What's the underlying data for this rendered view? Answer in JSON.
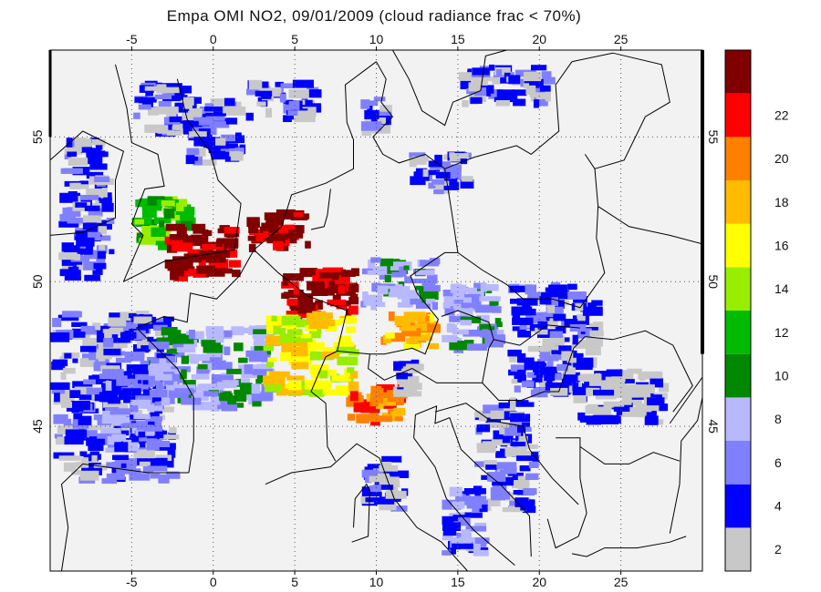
{
  "title": "Empa OMI NO2, 09/01/2009 (cloud radiance frac < 70%)",
  "map": {
    "lon_range": [
      -10,
      30
    ],
    "lat_range": [
      40,
      58
    ],
    "lon_ticks": [
      "-5",
      "0",
      "5",
      "10",
      "15",
      "20",
      "25"
    ],
    "lat_ticks": [
      "45",
      "50",
      "55"
    ],
    "background_color": "#f2f2f2",
    "frame_color": "#000000"
  },
  "colorbar": {
    "labels": [
      "2",
      "4",
      "6",
      "8",
      "10",
      "12",
      "14",
      "16",
      "18",
      "20",
      "22"
    ],
    "colors": [
      "#c8c8c8",
      "#0000ff",
      "#8080ff",
      "#b8b8ff",
      "#008800",
      "#00bb00",
      "#99ee00",
      "#ffff00",
      "#ffbb00",
      "#ff8000",
      "#ff0000",
      "#800000"
    ]
  },
  "chart_data": {
    "type": "heatmap",
    "title": "Empa OMI NO2, 09/01/2009 (cloud radiance frac < 70%)",
    "x": {
      "range": [
        -10,
        30
      ],
      "ticks": [
        -5,
        0,
        5,
        10,
        15,
        20,
        25
      ]
    },
    "y": {
      "range": [
        40,
        58
      ],
      "ticks": [
        45,
        50,
        55
      ]
    },
    "legend": "right",
    "colorbar_ticks": [
      2,
      4,
      6,
      8,
      10,
      12,
      14,
      16,
      18,
      20,
      22
    ],
    "grid": true
  },
  "regions": [
    {
      "lon": [
        -9.5,
        -6
      ],
      "lat": [
        50,
        55
      ],
      "level": 1
    },
    {
      "lon": [
        -10,
        -2
      ],
      "lat": [
        43,
        49
      ],
      "level": 1
    },
    {
      "lon": [
        -7,
        -3
      ],
      "lat": [
        44,
        47
      ],
      "level": 2
    },
    {
      "lon": [
        -4,
        4
      ],
      "lat": [
        45.5,
        48.5
      ],
      "level": 3
    },
    {
      "lon": [
        -5,
        -1
      ],
      "lat": [
        55,
        57
      ],
      "level": 1
    },
    {
      "lon": [
        -2,
        2
      ],
      "lat": [
        54,
        56.5
      ],
      "level": 1
    },
    {
      "lon": [
        2,
        7
      ],
      "lat": [
        55.5,
        57
      ],
      "level": 1
    },
    {
      "lon": [
        9,
        11
      ],
      "lat": [
        55,
        56.5
      ],
      "level": 1
    },
    {
      "lon": [
        15,
        21
      ],
      "lat": [
        56,
        57.5
      ],
      "level": 1
    },
    {
      "lon": [
        -5,
        -1
      ],
      "lat": [
        51,
        53
      ],
      "level": 5
    },
    {
      "lon": [
        -3,
        2
      ],
      "lat": [
        50,
        52
      ],
      "level": 11
    },
    {
      "lon": [
        2,
        6
      ],
      "lat": [
        51,
        52.5
      ],
      "level": 11
    },
    {
      "lon": [
        4,
        9
      ],
      "lat": [
        48.5,
        50.5
      ],
      "level": 11
    },
    {
      "lon": [
        3,
        9
      ],
      "lat": [
        46,
        49
      ],
      "level": 7
    },
    {
      "lon": [
        9,
        14
      ],
      "lat": [
        49,
        51
      ],
      "level": 3
    },
    {
      "lon": [
        10,
        14
      ],
      "lat": [
        47.5,
        49
      ],
      "level": 8
    },
    {
      "lon": [
        14,
        18
      ],
      "lat": [
        47.5,
        50
      ],
      "level": 3
    },
    {
      "lon": [
        18,
        24
      ],
      "lat": [
        46,
        50
      ],
      "level": 1
    },
    {
      "lon": [
        22,
        28
      ],
      "lat": [
        45,
        47
      ],
      "level": 0
    },
    {
      "lon": [
        8,
        12
      ],
      "lat": [
        45,
        46.5
      ],
      "level": 9
    },
    {
      "lon": [
        16,
        20
      ],
      "lat": [
        42,
        46
      ],
      "level": 1
    },
    {
      "lon": [
        14,
        17
      ],
      "lat": [
        40.5,
        43
      ],
      "level": 2
    },
    {
      "lon": [
        9,
        12
      ],
      "lat": [
        42,
        44
      ],
      "level": 1
    },
    {
      "lon": [
        12,
        16
      ],
      "lat": [
        53,
        54.5
      ],
      "level": 1
    },
    {
      "lon": [
        11,
        13
      ],
      "lat": [
        46,
        47.5
      ],
      "level": 0
    }
  ]
}
